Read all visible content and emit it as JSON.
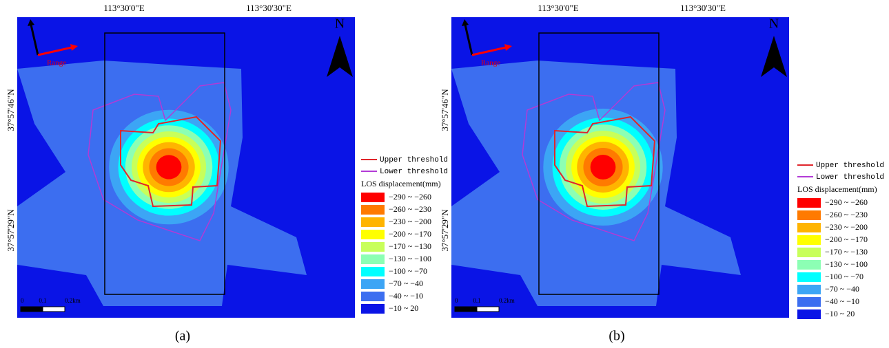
{
  "panels": [
    {
      "caption": "(a)",
      "top_labels": [
        "113°30'0\"E",
        "113°30'30\"E"
      ],
      "left_labels": [
        "37°57'46\"N",
        "37°57'29\"N"
      ],
      "north": "N",
      "range": "Range",
      "scale": [
        "0",
        "0.1",
        "0.2km"
      ]
    },
    {
      "caption": "(b)",
      "top_labels": [
        "113°30'0\"E",
        "113°30'30\"E"
      ],
      "left_labels": [
        "37°57'46\"N",
        "37°57'29\"N"
      ],
      "north": "N",
      "range": "Range",
      "scale": [
        "0",
        "0.1",
        "0.2km"
      ]
    }
  ],
  "legend": {
    "lines": [
      {
        "label": "Upper threshold",
        "color": "#e0252b"
      },
      {
        "label": "Lower threshold",
        "color": "#b23ad6"
      }
    ],
    "title": "LOS displacement(mm)",
    "classes": [
      {
        "label": "−290 ~ −260",
        "color": "#ff0000"
      },
      {
        "label": "−260 ~ −230",
        "color": "#ff7a00"
      },
      {
        "label": "−230 ~ −200",
        "color": "#ffb400"
      },
      {
        "label": "−200 ~ −170",
        "color": "#ffff00"
      },
      {
        "label": "−170 ~ −130",
        "color": "#c8ff5a"
      },
      {
        "label": "−130 ~ −100",
        "color": "#8cffb4"
      },
      {
        "label": "−100 ~ −70",
        "color": "#00ffff"
      },
      {
        "label": "−70 ~ −40",
        "color": "#3ca5f5"
      },
      {
        "label": "−40 ~ −10",
        "color": "#3c6ef0"
      },
      {
        "label": "−10 ~ 20",
        "color": "#0a14e6"
      }
    ]
  }
}
